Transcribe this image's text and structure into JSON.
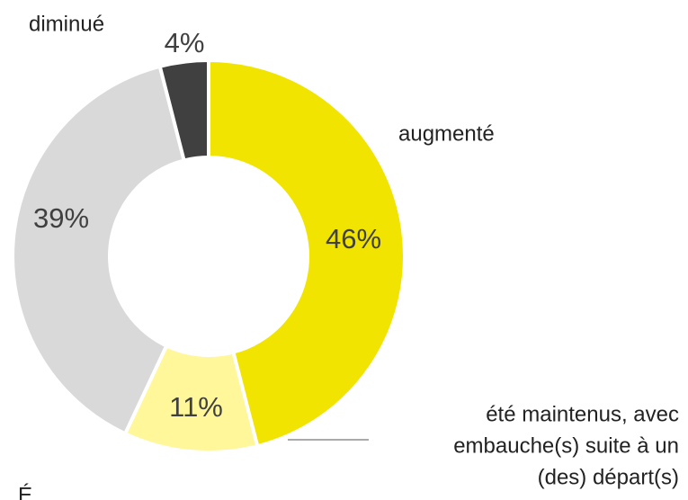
{
  "chart_data": {
    "type": "donut",
    "categories": [
      "augmenté",
      [
        "été maintenus, avec",
        "embauche(s) suite à un",
        "(des) départ(s)"
      ],
      "É",
      "diminué"
    ],
    "values": [
      46,
      11,
      39,
      4
    ],
    "value_labels": [
      "46%",
      "11%",
      "39%",
      "4%"
    ],
    "colors": [
      "#f0e400",
      "#fff799",
      "#d9d9d9",
      "#404040"
    ]
  }
}
